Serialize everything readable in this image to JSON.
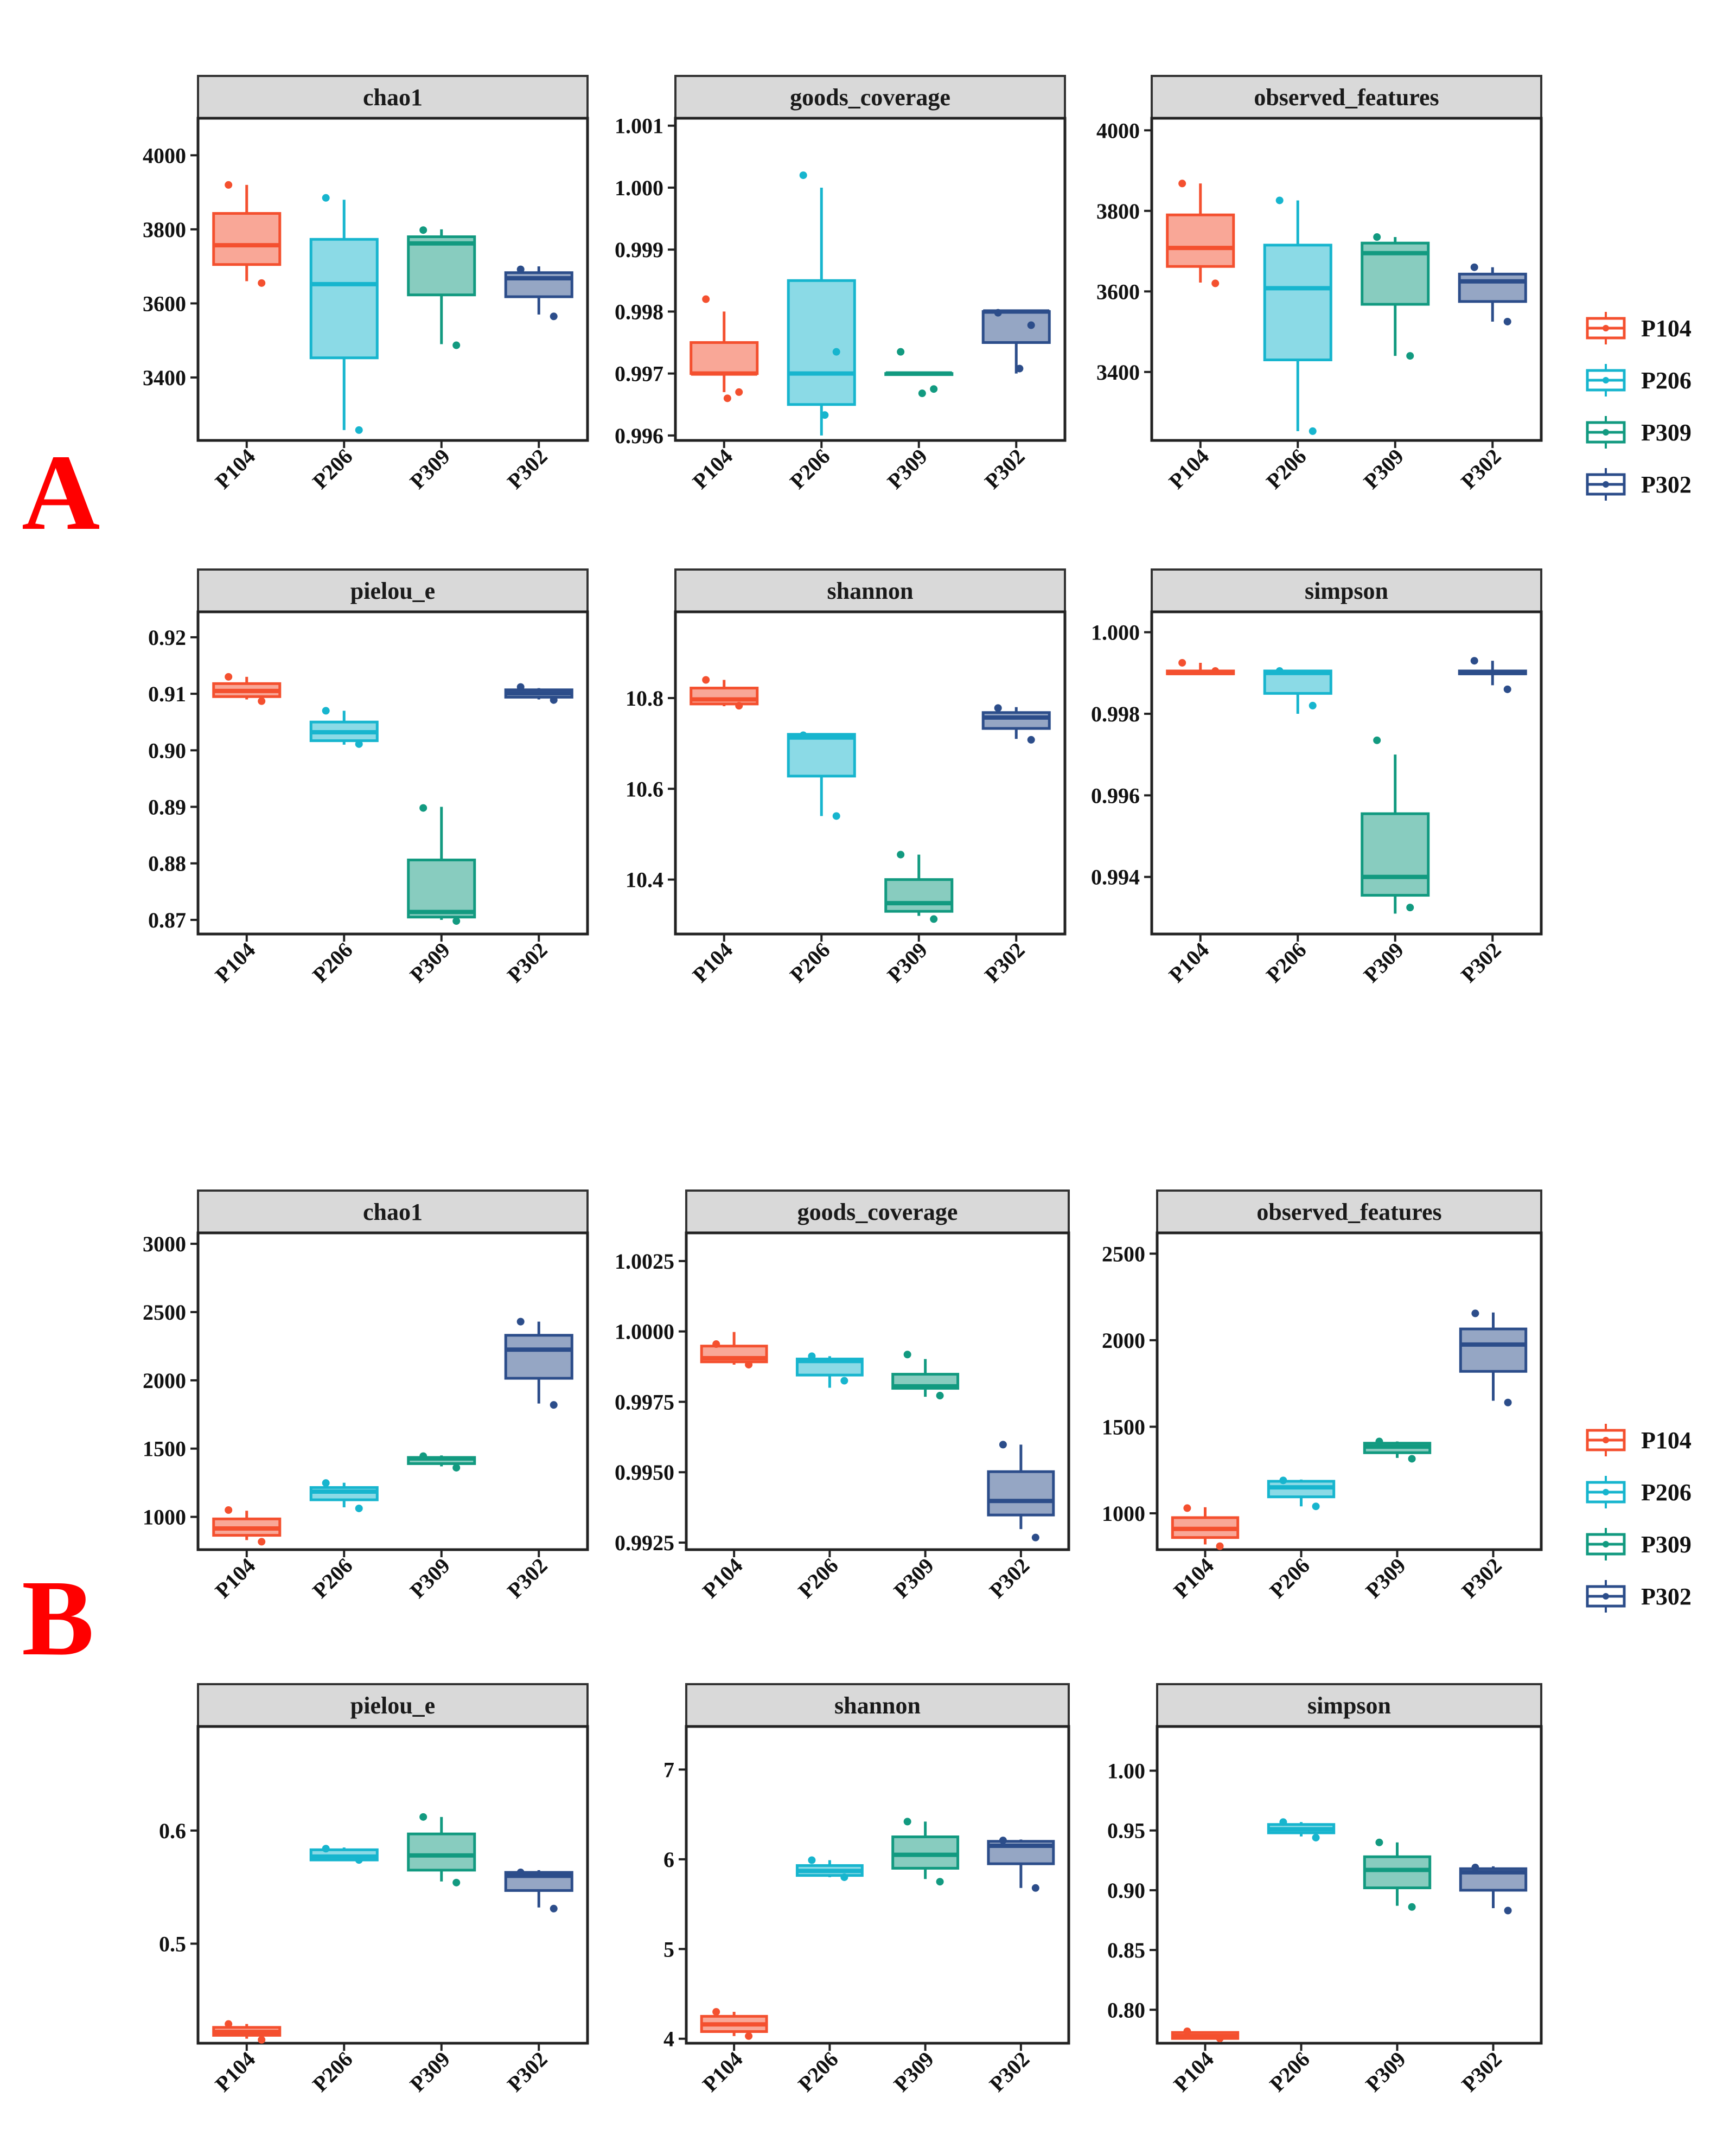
{
  "colors": {
    "P104": "#f4502f",
    "P206": "#17b5ce",
    "P309": "#129a80",
    "P302": "#2c4d8a",
    "strip": "#d9d9d9",
    "label": "#ff0000"
  },
  "groups": [
    "P104",
    "P206",
    "P309",
    "P302"
  ],
  "panel_labels": [
    "A",
    "B"
  ],
  "legends": [
    {
      "title": "",
      "items": [
        "P104",
        "P206",
        "P309",
        "P302"
      ]
    },
    {
      "title": "",
      "items": [
        "P104",
        "P206",
        "P309",
        "P302"
      ]
    }
  ],
  "chart_data": [
    {
      "id": "A-chao1",
      "type": "box",
      "title": "chao1",
      "ylim": [
        3230,
        4100
      ],
      "yticks": [
        3400,
        3600,
        3800,
        4000
      ],
      "ytick_labels": [
        "3400",
        "3600",
        "3800",
        "4000"
      ],
      "categories": [
        "P104",
        "P206",
        "P309",
        "P302"
      ],
      "boxes": [
        {
          "q1": 3705,
          "median": 3757,
          "q3": 3843,
          "lo": 3660,
          "hi": 3920,
          "points": [
            3920,
            3655
          ]
        },
        {
          "q1": 3453,
          "median": 3652,
          "q3": 3773,
          "lo": 3258,
          "hi": 3880,
          "points": [
            3885,
            3258
          ]
        },
        {
          "q1": 3623,
          "median": 3762,
          "q3": 3780,
          "lo": 3490,
          "hi": 3800,
          "points": [
            3798,
            3487
          ]
        },
        {
          "q1": 3618,
          "median": 3668,
          "q3": 3683,
          "lo": 3570,
          "hi": 3700,
          "points": [
            3692,
            3565
          ]
        }
      ]
    },
    {
      "id": "A-goods",
      "type": "box",
      "title": "goods_coverage",
      "ylim": [
        0.99592,
        1.00112
      ],
      "yticks": [
        0.996,
        0.997,
        0.998,
        0.999,
        1.0,
        1.001
      ],
      "ytick_labels": [
        "0.996",
        "0.997",
        "0.998",
        "0.999",
        "1.000",
        "1.001"
      ],
      "categories": [
        "P104",
        "P206",
        "P309",
        "P302"
      ],
      "boxes": [
        {
          "q1": 0.997,
          "median": 0.997,
          "q3": 0.9975,
          "lo": 0.9967,
          "hi": 0.998,
          "points": [
            0.9982,
            0.9967,
            0.9966
          ]
        },
        {
          "q1": 0.9965,
          "median": 0.997,
          "q3": 0.9985,
          "lo": 0.996,
          "hi": 1.0,
          "points": [
            1.0002,
            0.99735,
            0.99633
          ]
        },
        {
          "q1": 0.997,
          "median": 0.997,
          "q3": 0.997,
          "lo": 0.997,
          "hi": 0.997,
          "points": [
            0.99735,
            0.99675,
            0.99668
          ]
        },
        {
          "q1": 0.9975,
          "median": 0.998,
          "q3": 0.998,
          "lo": 0.997,
          "hi": 0.998,
          "points": [
            0.99798,
            0.99778,
            0.99708
          ]
        }
      ]
    },
    {
      "id": "A-obs",
      "type": "box",
      "title": "observed_features",
      "ylim": [
        3230,
        4030
      ],
      "yticks": [
        3400,
        3600,
        3800,
        4000
      ],
      "ytick_labels": [
        "3400",
        "3600",
        "3800",
        "4000"
      ],
      "categories": [
        "P104",
        "P206",
        "P309",
        "P302"
      ],
      "boxes": [
        {
          "q1": 3662,
          "median": 3708,
          "q3": 3790,
          "lo": 3622,
          "hi": 3868,
          "points": [
            3868,
            3620
          ]
        },
        {
          "q1": 3430,
          "median": 3608,
          "q3": 3715,
          "lo": 3253,
          "hi": 3826,
          "points": [
            3826,
            3253
          ]
        },
        {
          "q1": 3568,
          "median": 3695,
          "q3": 3720,
          "lo": 3440,
          "hi": 3735,
          "points": [
            3735,
            3440
          ]
        },
        {
          "q1": 3575,
          "median": 3625,
          "q3": 3643,
          "lo": 3525,
          "hi": 3660,
          "points": [
            3660,
            3525
          ]
        }
      ]
    },
    {
      "id": "A-pielou",
      "type": "box",
      "title": "pielou_e",
      "ylim": [
        0.8675,
        0.9245
      ],
      "yticks": [
        0.87,
        0.88,
        0.89,
        0.9,
        0.91,
        0.92
      ],
      "ytick_labels": [
        "0.87",
        "0.88",
        "0.89",
        "0.90",
        "0.91",
        "0.92"
      ],
      "categories": [
        "P104",
        "P206",
        "P309",
        "P302"
      ],
      "boxes": [
        {
          "q1": 0.9095,
          "median": 0.9105,
          "q3": 0.9118,
          "lo": 0.909,
          "hi": 0.913,
          "points": [
            0.913,
            0.9087
          ]
        },
        {
          "q1": 0.9017,
          "median": 0.9032,
          "q3": 0.905,
          "lo": 0.901,
          "hi": 0.907,
          "points": [
            0.907,
            0.9011
          ]
        },
        {
          "q1": 0.8705,
          "median": 0.8714,
          "q3": 0.8806,
          "lo": 0.87,
          "hi": 0.89,
          "points": [
            0.8898,
            0.8698
          ]
        },
        {
          "q1": 0.9094,
          "median": 0.9101,
          "q3": 0.9107,
          "lo": 0.909,
          "hi": 0.911,
          "points": [
            0.9112,
            0.9089
          ]
        }
      ]
    },
    {
      "id": "A-shannon",
      "type": "box",
      "title": "shannon",
      "ylim": [
        10.28,
        10.99
      ],
      "yticks": [
        10.4,
        10.6,
        10.8
      ],
      "ytick_labels": [
        "10.4",
        "10.6",
        "10.8"
      ],
      "categories": [
        "P104",
        "P206",
        "P309",
        "P302"
      ],
      "boxes": [
        {
          "q1": 10.787,
          "median": 10.797,
          "q3": 10.822,
          "lo": 10.782,
          "hi": 10.84,
          "points": [
            10.84,
            10.783
          ]
        },
        {
          "q1": 10.628,
          "median": 10.713,
          "q3": 10.72,
          "lo": 10.54,
          "hi": 10.72,
          "points": [
            10.718,
            10.54
          ]
        },
        {
          "q1": 10.33,
          "median": 10.348,
          "q3": 10.4,
          "lo": 10.32,
          "hi": 10.455,
          "points": [
            10.455,
            10.313
          ]
        },
        {
          "q1": 10.733,
          "median": 10.757,
          "q3": 10.768,
          "lo": 10.71,
          "hi": 10.78,
          "points": [
            10.778,
            10.708
          ]
        }
      ]
    },
    {
      "id": "A-simpson",
      "type": "box",
      "title": "simpson",
      "ylim": [
        0.9926,
        1.0005
      ],
      "yticks": [
        0.994,
        0.996,
        0.998,
        1.0
      ],
      "ytick_labels": [
        "0.994",
        "0.996",
        "0.998",
        "1.000"
      ],
      "categories": [
        "P104",
        "P206",
        "P309",
        "P302"
      ],
      "boxes": [
        {
          "q1": 0.99898,
          "median": 0.999,
          "q3": 0.99905,
          "lo": 0.99898,
          "hi": 0.99925,
          "points": [
            0.99925,
            0.99905
          ]
        },
        {
          "q1": 0.9985,
          "median": 0.999,
          "q3": 0.99905,
          "lo": 0.998,
          "hi": 0.99905,
          "points": [
            0.99905,
            0.9982
          ]
        },
        {
          "q1": 0.99355,
          "median": 0.994,
          "q3": 0.99555,
          "lo": 0.9931,
          "hi": 0.997,
          "points": [
            0.99735,
            0.99325
          ]
        },
        {
          "q1": 0.99898,
          "median": 0.999,
          "q3": 0.99905,
          "lo": 0.9987,
          "hi": 0.9993,
          "points": [
            0.9993,
            0.9986
          ]
        }
      ]
    },
    {
      "id": "B-chao1",
      "type": "box",
      "title": "chao1",
      "ylim": [
        760,
        3080
      ],
      "yticks": [
        1000,
        1500,
        2000,
        2500,
        3000
      ],
      "ytick_labels": [
        "1000",
        "1500",
        "2000",
        "2500",
        "3000"
      ],
      "categories": [
        "P104",
        "P206",
        "P309",
        "P302"
      ],
      "boxes": [
        {
          "q1": 865,
          "median": 915,
          "q3": 985,
          "lo": 830,
          "hi": 1045,
          "points": [
            1050,
            818
          ]
        },
        {
          "q1": 1125,
          "median": 1185,
          "q3": 1215,
          "lo": 1070,
          "hi": 1250,
          "points": [
            1248,
            1062
          ]
        },
        {
          "q1": 1390,
          "median": 1428,
          "q3": 1435,
          "lo": 1370,
          "hi": 1450,
          "points": [
            1445,
            1360
          ]
        },
        {
          "q1": 2015,
          "median": 2225,
          "q3": 2330,
          "lo": 1830,
          "hi": 2430,
          "points": [
            2430,
            1820
          ]
        }
      ]
    },
    {
      "id": "B-goods",
      "type": "box",
      "title": "goods_coverage",
      "ylim": [
        0.99225,
        1.0035
      ],
      "yticks": [
        0.9925,
        0.995,
        0.9975,
        1.0,
        1.0025
      ],
      "ytick_labels": [
        "0.9925",
        "0.9950",
        "0.9975",
        "1.0000",
        "1.0025"
      ],
      "categories": [
        "P104",
        "P206",
        "P309",
        "P302"
      ],
      "boxes": [
        {
          "q1": 0.99892,
          "median": 0.99905,
          "q3": 0.99948,
          "lo": 0.99882,
          "hi": 0.99998,
          "points": [
            0.99955,
            0.99882
          ]
        },
        {
          "q1": 0.99845,
          "median": 0.99895,
          "q3": 0.99902,
          "lo": 0.998,
          "hi": 0.99912,
          "points": [
            0.99912,
            0.99825
          ]
        },
        {
          "q1": 0.99798,
          "median": 0.99805,
          "q3": 0.99848,
          "lo": 0.99768,
          "hi": 0.99902,
          "points": [
            0.99918,
            0.99772
          ]
        },
        {
          "q1": 0.99348,
          "median": 0.99398,
          "q3": 0.99502,
          "lo": 0.99298,
          "hi": 0.99598,
          "points": [
            0.99598,
            0.99268
          ]
        }
      ]
    },
    {
      "id": "B-obs",
      "type": "box",
      "title": "observed_features",
      "ylim": [
        790,
        2620
      ],
      "yticks": [
        1000,
        1500,
        2000,
        2500
      ],
      "ytick_labels": [
        "1000",
        "1500",
        "2000",
        "2500"
      ],
      "categories": [
        "P104",
        "P206",
        "P309",
        "P302"
      ],
      "boxes": [
        {
          "q1": 860,
          "median": 910,
          "q3": 975,
          "lo": 820,
          "hi": 1035,
          "points": [
            1030,
            810
          ]
        },
        {
          "q1": 1095,
          "median": 1150,
          "q3": 1185,
          "lo": 1040,
          "hi": 1195,
          "points": [
            1190,
            1040
          ]
        },
        {
          "q1": 1350,
          "median": 1385,
          "q3": 1405,
          "lo": 1320,
          "hi": 1415,
          "points": [
            1415,
            1315
          ]
        },
        {
          "q1": 1820,
          "median": 1975,
          "q3": 2065,
          "lo": 1650,
          "hi": 2160,
          "points": [
            2155,
            1640
          ]
        }
      ]
    },
    {
      "id": "B-pielou",
      "type": "box",
      "title": "pielou_e",
      "ylim": [
        0.412,
        0.692
      ],
      "yticks": [
        0.5,
        0.6
      ],
      "ytick_labels": [
        "0.5",
        "0.6"
      ],
      "categories": [
        "P104",
        "P206",
        "P309",
        "P302"
      ],
      "boxes": [
        {
          "q1": 0.419,
          "median": 0.422,
          "q3": 0.426,
          "lo": 0.416,
          "hi": 0.429,
          "points": [
            0.429,
            0.415
          ]
        },
        {
          "q1": 0.574,
          "median": 0.577,
          "q3": 0.583,
          "lo": 0.573,
          "hi": 0.585,
          "points": [
            0.584,
            0.574
          ]
        },
        {
          "q1": 0.565,
          "median": 0.578,
          "q3": 0.597,
          "lo": 0.555,
          "hi": 0.612,
          "points": [
            0.612,
            0.554
          ]
        },
        {
          "q1": 0.547,
          "median": 0.56,
          "q3": 0.563,
          "lo": 0.532,
          "hi": 0.565,
          "points": [
            0.563,
            0.531
          ]
        }
      ]
    },
    {
      "id": "B-shannon",
      "type": "box",
      "title": "shannon",
      "ylim": [
        3.95,
        7.48
      ],
      "yticks": [
        4,
        5,
        6,
        7
      ],
      "ytick_labels": [
        "4",
        "5",
        "6",
        "7"
      ],
      "categories": [
        "P104",
        "P206",
        "P309",
        "P302"
      ],
      "boxes": [
        {
          "q1": 4.08,
          "median": 4.16,
          "q3": 4.25,
          "lo": 4.03,
          "hi": 4.3,
          "points": [
            4.3,
            4.03
          ]
        },
        {
          "q1": 5.82,
          "median": 5.87,
          "q3": 5.93,
          "lo": 5.8,
          "hi": 5.99,
          "points": [
            5.99,
            5.8
          ]
        },
        {
          "q1": 5.9,
          "median": 6.05,
          "q3": 6.25,
          "lo": 5.78,
          "hi": 6.42,
          "points": [
            6.42,
            5.75
          ]
        },
        {
          "q1": 5.95,
          "median": 6.15,
          "q3": 6.2,
          "lo": 5.68,
          "hi": 6.22,
          "points": [
            6.21,
            5.68
          ]
        }
      ]
    },
    {
      "id": "B-simpson",
      "type": "box",
      "title": "simpson",
      "ylim": [
        0.772,
        1.037
      ],
      "yticks": [
        0.8,
        0.85,
        0.9,
        0.95,
        1.0
      ],
      "ytick_labels": [
        "0.80",
        "0.85",
        "0.90",
        "0.95",
        "1.00"
      ],
      "categories": [
        "P104",
        "P206",
        "P309",
        "P302"
      ],
      "boxes": [
        {
          "q1": 0.776,
          "median": 0.778,
          "q3": 0.781,
          "lo": 0.775,
          "hi": 0.782,
          "points": [
            0.782,
            0.776
          ]
        },
        {
          "q1": 0.948,
          "median": 0.951,
          "q3": 0.955,
          "lo": 0.945,
          "hi": 0.957,
          "points": [
            0.957,
            0.944
          ]
        },
        {
          "q1": 0.902,
          "median": 0.917,
          "q3": 0.928,
          "lo": 0.887,
          "hi": 0.94,
          "points": [
            0.94,
            0.886
          ]
        },
        {
          "q1": 0.9,
          "median": 0.915,
          "q3": 0.918,
          "lo": 0.885,
          "hi": 0.92,
          "points": [
            0.919,
            0.883
          ]
        }
      ]
    }
  ]
}
